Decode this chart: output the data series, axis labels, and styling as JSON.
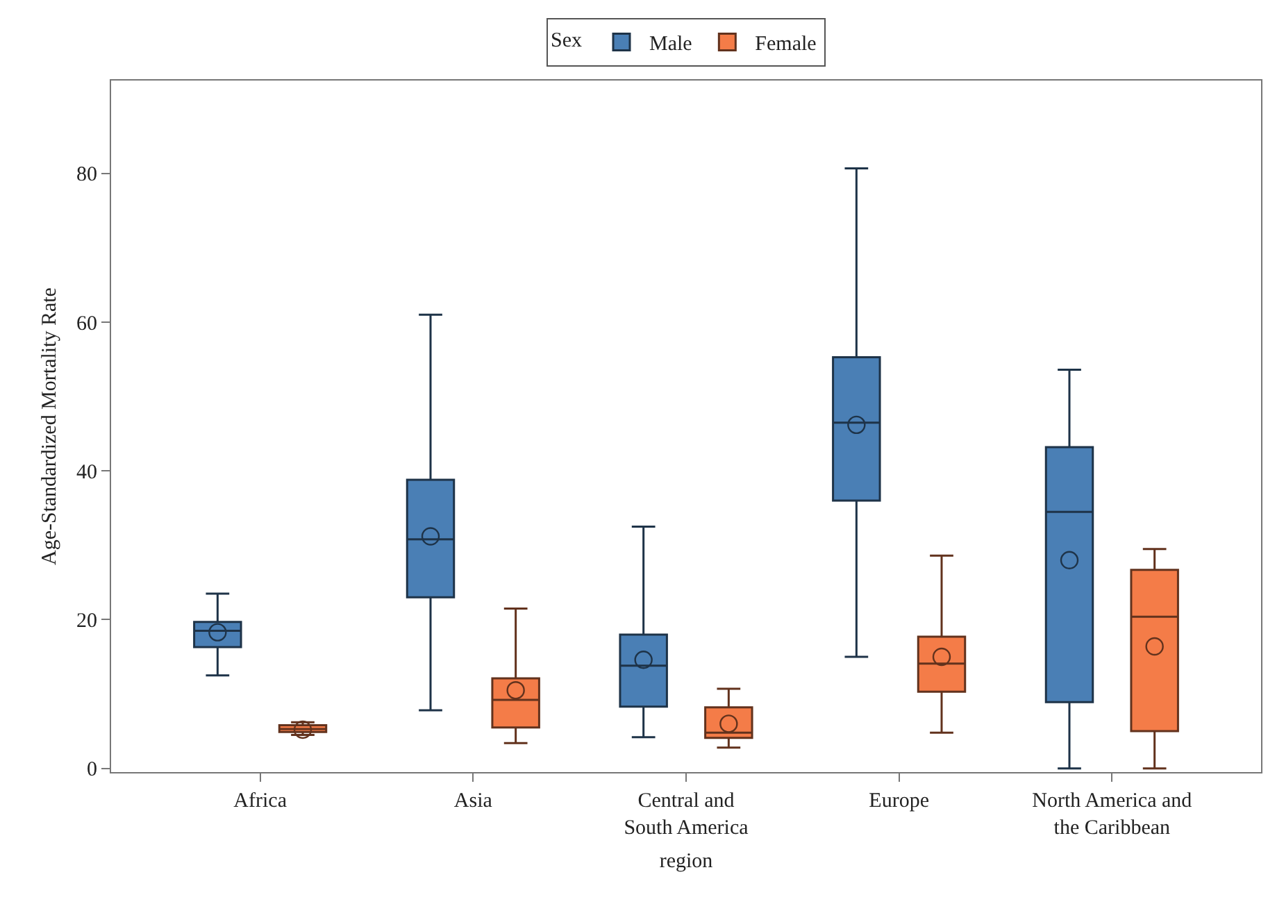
{
  "chart_data": {
    "type": "box",
    "xlabel": "region",
    "ylabel": "Age-Standardized Mortality Rate",
    "legend_title": "Sex",
    "legend": "top",
    "grid": false,
    "marker": "circle",
    "categories": [
      "Africa",
      "Asia",
      "Central and South America",
      "Europe",
      "North America and the Caribbean"
    ],
    "ylim": [
      -0.5,
      92.5
    ],
    "yticks": [
      0,
      20,
      40,
      60,
      80
    ],
    "series": [
      {
        "name": "Male",
        "color": "#4a7fb5",
        "boxes": [
          {
            "low": 12.5,
            "q1": 16.3,
            "median": 18.5,
            "q3": 19.7,
            "high": 23.5,
            "mean": 18.3
          },
          {
            "low": 7.8,
            "q1": 23,
            "median": 30.8,
            "q3": 38.8,
            "high": 61,
            "mean": 31.2
          },
          {
            "low": 4.2,
            "q1": 8.3,
            "median": 13.8,
            "q3": 18,
            "high": 32.5,
            "mean": 14.6
          },
          {
            "low": 15,
            "q1": 36,
            "median": 46.5,
            "q3": 55.3,
            "high": 80.7,
            "mean": 46.2
          },
          {
            "low": 0,
            "q1": 8.9,
            "median": 34.5,
            "q3": 43.2,
            "high": 53.6,
            "mean": 28
          }
        ]
      },
      {
        "name": "Female",
        "color": "#f47c48",
        "boxes": [
          {
            "low": 4.5,
            "q1": 4.9,
            "median": 5.3,
            "q3": 5.8,
            "high": 6.2,
            "mean": 5.2
          },
          {
            "low": 3.4,
            "q1": 5.5,
            "median": 9.2,
            "q3": 12.1,
            "high": 21.5,
            "mean": 10.5
          },
          {
            "low": 2.8,
            "q1": 4.1,
            "median": 4.8,
            "q3": 8.2,
            "high": 10.7,
            "mean": 6
          },
          {
            "low": 4.8,
            "q1": 10.3,
            "median": 14.1,
            "q3": 17.7,
            "high": 28.6,
            "mean": 15
          },
          {
            "low": 0,
            "q1": 5,
            "median": 20.4,
            "q3": 26.7,
            "high": 29.5,
            "mean": 16.4
          }
        ]
      }
    ]
  }
}
